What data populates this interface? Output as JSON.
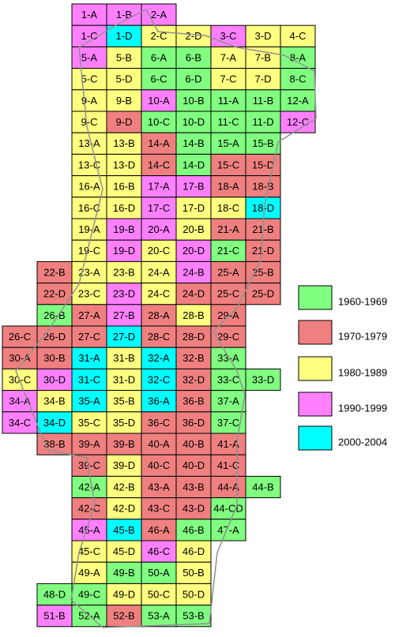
{
  "legend": [
    {
      "label": "1960-1969",
      "color": "#80ff80"
    },
    {
      "label": "1970-1979",
      "color": "#f08080"
    },
    {
      "label": "1980-1989",
      "color": "#ffff80"
    },
    {
      "label": "1990-1999",
      "color": "#ff80ff"
    },
    {
      "label": "2000-2004",
      "color": "#00ffff"
    }
  ],
  "rows": [
    {
      "cells": [
        {
          "label": "1-A",
          "color": "#ff80ff"
        },
        {
          "label": "1-B",
          "color": "#ff80ff"
        },
        {
          "label": "2-A",
          "color": "#ff80ff"
        }
      ]
    },
    {
      "cells": [
        {
          "label": "1-C",
          "color": "#ff80ff"
        },
        {
          "label": "1-D",
          "color": "#00ffff"
        },
        {
          "label": "2-C",
          "color": "#ffff80"
        },
        {
          "label": "2-D",
          "color": "#ffff80"
        },
        {
          "label": "3-C",
          "color": "#ff80ff"
        },
        {
          "label": "3-D",
          "color": "#ffff80"
        },
        {
          "label": "4-C",
          "color": "#ffff80"
        }
      ]
    },
    {
      "cells": [
        {
          "label": "5-A",
          "color": "#ff80ff"
        },
        {
          "label": "5-B",
          "color": "#ffff80"
        },
        {
          "label": "6-A",
          "color": "#80ff80"
        },
        {
          "label": "6-B",
          "color": "#80ff80"
        },
        {
          "label": "7-A",
          "color": "#ffff80"
        },
        {
          "label": "7-B",
          "color": "#ffff80"
        },
        {
          "label": "8-A",
          "color": "#80ff80"
        }
      ]
    },
    {
      "cells": [
        {
          "label": "5-C",
          "color": "#ffff80"
        },
        {
          "label": "5-D",
          "color": "#ffff80"
        },
        {
          "label": "6-C",
          "color": "#80ff80"
        },
        {
          "label": "6-D",
          "color": "#80ff80"
        },
        {
          "label": "7-C",
          "color": "#ffff80"
        },
        {
          "label": "7-D",
          "color": "#ffff80"
        },
        {
          "label": "8-C",
          "color": "#80ff80"
        }
      ]
    },
    {
      "cells": [
        {
          "label": "9-A",
          "color": "#ffff80"
        },
        {
          "label": "9-B",
          "color": "#ffff80"
        },
        {
          "label": "10-A",
          "color": "#ff80ff"
        },
        {
          "label": "10-B",
          "color": "#80ff80"
        },
        {
          "label": "11-A",
          "color": "#80ff80"
        },
        {
          "label": "11-B",
          "color": "#80ff80"
        },
        {
          "label": "12-A",
          "color": "#80ff80"
        }
      ]
    },
    {
      "cells": [
        {
          "label": "9-C",
          "color": "#ffff80"
        },
        {
          "label": "9-D",
          "color": "#f08080"
        },
        {
          "label": "10-C",
          "color": "#80ff80"
        },
        {
          "label": "10-D",
          "color": "#80ff80"
        },
        {
          "label": "11-C",
          "color": "#80ff80"
        },
        {
          "label": "11-D",
          "color": "#80ff80"
        },
        {
          "label": "12-C",
          "color": "#ff80ff"
        }
      ]
    },
    {
      "cells": [
        {
          "label": "13-A",
          "color": "#ffff80"
        },
        {
          "label": "13-B",
          "color": "#ffff80"
        },
        {
          "label": "14-A",
          "color": "#f08080"
        },
        {
          "label": "14-B",
          "color": "#80ff80"
        },
        {
          "label": "15-A",
          "color": "#80ff80"
        },
        {
          "label": "15-B",
          "color": "#80ff80"
        }
      ]
    },
    {
      "cells": [
        {
          "label": "13-C",
          "color": "#ffff80"
        },
        {
          "label": "13-D",
          "color": "#ffff80"
        },
        {
          "label": "14-C",
          "color": "#f08080"
        },
        {
          "label": "14-D",
          "color": "#80ff80"
        },
        {
          "label": "15-C",
          "color": "#f08080"
        },
        {
          "label": "15-D",
          "color": "#f08080"
        }
      ]
    },
    {
      "cells": [
        {
          "label": "16-A",
          "color": "#ffff80"
        },
        {
          "label": "16-B",
          "color": "#ffff80"
        },
        {
          "label": "17-A",
          "color": "#ff80ff"
        },
        {
          "label": "17-B",
          "color": "#ff80ff"
        },
        {
          "label": "18-A",
          "color": "#f08080"
        },
        {
          "label": "18-B",
          "color": "#f08080"
        }
      ]
    },
    {
      "cells": [
        {
          "label": "16-C",
          "color": "#ffff80"
        },
        {
          "label": "16-D",
          "color": "#ffff80"
        },
        {
          "label": "17-C",
          "color": "#ff80ff"
        },
        {
          "label": "17-D",
          "color": "#ffff80"
        },
        {
          "label": "18-C",
          "color": "#ffff80"
        },
        {
          "label": "18-D",
          "color": "#00ffff"
        }
      ]
    },
    {
      "cells": [
        {
          "label": "19-A",
          "color": "#ffff80"
        },
        {
          "label": "19-B",
          "color": "#ff80ff"
        },
        {
          "label": "20-A",
          "color": "#ff80ff"
        },
        {
          "label": "20-B",
          "color": "#ffff80"
        },
        {
          "label": "21-A",
          "color": "#f08080"
        },
        {
          "label": "21-B",
          "color": "#f08080"
        }
      ]
    },
    {
      "cells": [
        {
          "label": "19-C",
          "color": "#ffff80"
        },
        {
          "label": "19-D",
          "color": "#ff80ff"
        },
        {
          "label": "20-C",
          "color": "#ffff80"
        },
        {
          "label": "20-D",
          "color": "#ff80ff"
        },
        {
          "label": "21-C",
          "color": "#80ff80"
        },
        {
          "label": "21-D",
          "color": "#f08080"
        }
      ]
    },
    {
      "cells": [
        {
          "label": "22-B",
          "color": "#f08080"
        },
        {
          "label": "23-A",
          "color": "#ffff80"
        },
        {
          "label": "23-B",
          "color": "#ffff80"
        },
        {
          "label": "24-A",
          "color": "#ffff80"
        },
        {
          "label": "24-B",
          "color": "#ff80ff"
        },
        {
          "label": "25-A",
          "color": "#f08080"
        },
        {
          "label": "25-B",
          "color": "#f08080"
        }
      ]
    },
    {
      "cells": [
        {
          "label": "22-D",
          "color": "#f08080"
        },
        {
          "label": "23-C",
          "color": "#ffff80"
        },
        {
          "label": "23-D",
          "color": "#ff80ff"
        },
        {
          "label": "24-C",
          "color": "#ffff80"
        },
        {
          "label": "24-D",
          "color": "#f08080"
        },
        {
          "label": "25-C",
          "color": "#f08080"
        },
        {
          "label": "25-D",
          "color": "#f08080"
        }
      ]
    },
    {
      "cells": [
        {
          "label": "26-B",
          "color": "#80ff80"
        },
        {
          "label": "27-A",
          "color": "#f08080"
        },
        {
          "label": "27-B",
          "color": "#ff80ff"
        },
        {
          "label": "28-A",
          "color": "#f08080"
        },
        {
          "label": "28-B",
          "color": "#ffff80"
        },
        {
          "label": "29-A",
          "color": "#f08080"
        }
      ]
    },
    {
      "cells": [
        {
          "label": "26-C",
          "color": "#f08080"
        },
        {
          "label": "26-D",
          "color": "#f08080"
        },
        {
          "label": "27-C",
          "color": "#f08080"
        },
        {
          "label": "27-D",
          "color": "#00ffff"
        },
        {
          "label": "28-C",
          "color": "#f08080"
        },
        {
          "label": "28-D",
          "color": "#f08080"
        },
        {
          "label": "29-C",
          "color": "#f08080"
        }
      ]
    },
    {
      "cells": [
        {
          "label": "30-A",
          "color": "#f08080"
        },
        {
          "label": "30-B",
          "color": "#f08080"
        },
        {
          "label": "31-A",
          "color": "#00ffff"
        },
        {
          "label": "31-B",
          "color": "#ffff80"
        },
        {
          "label": "32-A",
          "color": "#00ffff"
        },
        {
          "label": "32-B",
          "color": "#f08080"
        },
        {
          "label": "33-A",
          "color": "#80ff80"
        }
      ]
    },
    {
      "cells": [
        {
          "label": "30-C",
          "color": "#ffff80"
        },
        {
          "label": "30-D",
          "color": "#ff80ff"
        },
        {
          "label": "31-C",
          "color": "#00ffff"
        },
        {
          "label": "31-D",
          "color": "#ffff80"
        },
        {
          "label": "32-C",
          "color": "#00ffff"
        },
        {
          "label": "32-D",
          "color": "#f08080"
        },
        {
          "label": "33-C",
          "color": "#80ff80"
        },
        {
          "label": "33-D",
          "color": "#80ff80"
        }
      ]
    },
    {
      "cells": [
        {
          "label": "34-A",
          "color": "#ff80ff"
        },
        {
          "label": "34-B",
          "color": "#ffff80"
        },
        {
          "label": "35-A",
          "color": "#00ffff"
        },
        {
          "label": "35-B",
          "color": "#ffff80"
        },
        {
          "label": "36-A",
          "color": "#00ffff"
        },
        {
          "label": "36-B",
          "color": "#f08080"
        },
        {
          "label": "37-A",
          "color": "#80ff80"
        }
      ]
    },
    {
      "cells": [
        {
          "label": "34-C",
          "color": "#ff80ff"
        },
        {
          "label": "34-D",
          "color": "#00ffff"
        },
        {
          "label": "35-C",
          "color": "#ffff80"
        },
        {
          "label": "35-D",
          "color": "#ffff80"
        },
        {
          "label": "36-C",
          "color": "#f08080"
        },
        {
          "label": "36-D",
          "color": "#f08080"
        },
        {
          "label": "37-C",
          "color": "#80ff80"
        }
      ]
    },
    {
      "cells": [
        {
          "label": "38-B",
          "color": "#f08080"
        },
        {
          "label": "39-A",
          "color": "#f08080"
        },
        {
          "label": "39-B",
          "color": "#f08080"
        },
        {
          "label": "40-A",
          "color": "#f08080"
        },
        {
          "label": "40-B",
          "color": "#f08080"
        },
        {
          "label": "41-A",
          "color": "#f08080"
        }
      ]
    },
    {
      "cells": [
        {
          "label": "39-C",
          "color": "#f08080"
        },
        {
          "label": "39-D",
          "color": "#ffff80"
        },
        {
          "label": "40-C",
          "color": "#f08080"
        },
        {
          "label": "40-D",
          "color": "#f08080"
        },
        {
          "label": "41-C",
          "color": "#f08080"
        }
      ]
    },
    {
      "cells": [
        {
          "label": "42-A",
          "color": "#80ff80"
        },
        {
          "label": "42-B",
          "color": "#ffff80"
        },
        {
          "label": "43-A",
          "color": "#f08080"
        },
        {
          "label": "43-B",
          "color": "#f08080"
        },
        {
          "label": "44-A",
          "color": "#f08080"
        },
        {
          "label": "44-B",
          "color": "#80ff80"
        }
      ]
    },
    {
      "cells": [
        {
          "label": "42-C",
          "color": "#f08080"
        },
        {
          "label": "42-D",
          "color": "#ffff80"
        },
        {
          "label": "43-C",
          "color": "#f08080"
        },
        {
          "label": "43-D",
          "color": "#f08080"
        },
        {
          "label": "44-CD",
          "color": "#80ff80"
        }
      ]
    },
    {
      "cells": [
        {
          "label": "45-A",
          "color": "#ff80ff"
        },
        {
          "label": "45-B",
          "color": "#00ffff"
        },
        {
          "label": "46-A",
          "color": "#f08080"
        },
        {
          "label": "46-B",
          "color": "#80ff80"
        },
        {
          "label": "47-A",
          "color": "#80ff80"
        }
      ]
    },
    {
      "cells": [
        {
          "label": "45-C",
          "color": "#ffff80"
        },
        {
          "label": "45-D",
          "color": "#ffff80"
        },
        {
          "label": "46-C",
          "color": "#ff80ff"
        },
        {
          "label": "46-D",
          "color": "#ffff80"
        }
      ]
    },
    {
      "cells": [
        {
          "label": "49-A",
          "color": "#ffff80"
        },
        {
          "label": "49-B",
          "color": "#80ff80"
        },
        {
          "label": "50-A",
          "color": "#80ff80"
        },
        {
          "label": "50-B",
          "color": "#ffff80"
        }
      ]
    },
    {
      "cells": [
        {
          "label": "48-D",
          "color": "#80ff80"
        },
        {
          "label": "49-C",
          "color": "#80ff80"
        },
        {
          "label": "49-D",
          "color": "#ffff80"
        },
        {
          "label": "50-C",
          "color": "#ffff80"
        },
        {
          "label": "50-D",
          "color": "#ffff80"
        }
      ]
    },
    {
      "cells": [
        {
          "label": "51-B",
          "color": "#ff80ff"
        },
        {
          "label": "52-A",
          "color": "#80ff80"
        },
        {
          "label": "52-B",
          "color": "#f08080"
        },
        {
          "label": "53-A",
          "color": "#80ff80"
        },
        {
          "label": "53-B",
          "color": "#80ff80"
        }
      ]
    }
  ]
}
